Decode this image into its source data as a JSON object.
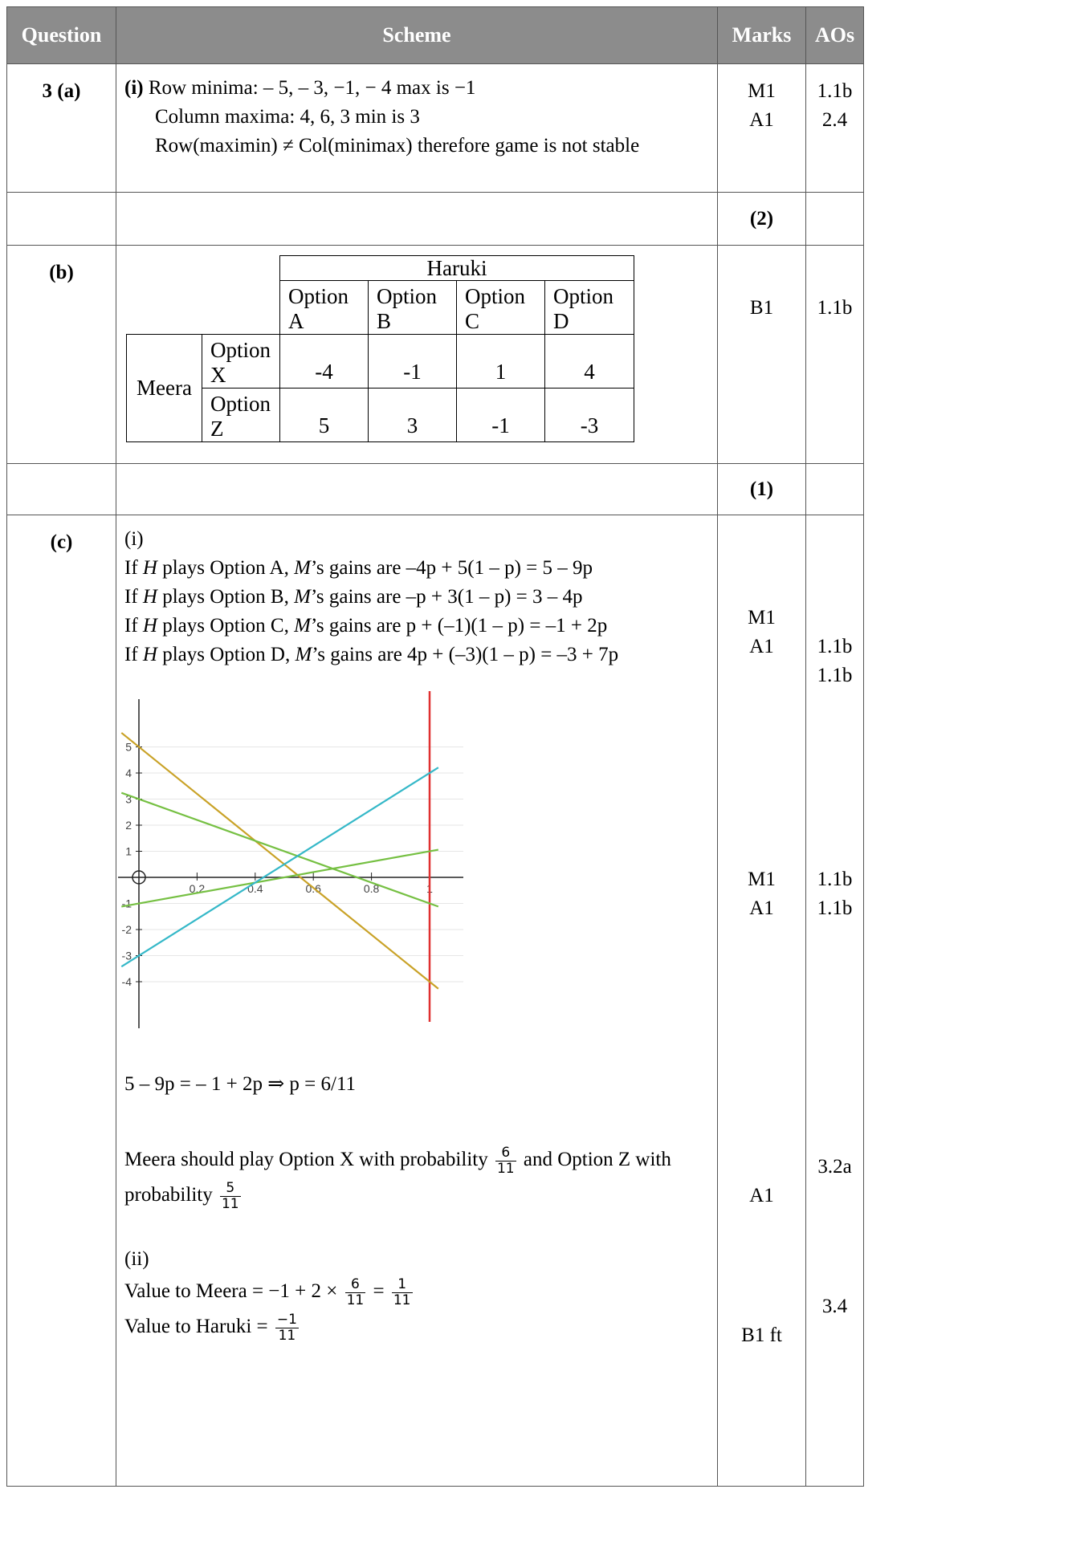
{
  "headers": {
    "question": "Question",
    "scheme": "Scheme",
    "marks": "Marks",
    "aos": "AOs"
  },
  "a": {
    "label": "3 (a)",
    "part_i": "(i)",
    "line1": "Row minima: – 5, – 3, −1, − 4 max is −1",
    "line2": "Column maxima: 4, 6, 3 min is 3",
    "line3": "Row(maximin) ≠ Col(minimax) therefore game is not stable",
    "marks": [
      "M1",
      "A1"
    ],
    "aos": [
      "1.1b",
      "2.4"
    ],
    "subtotal": "(2)"
  },
  "b": {
    "label": "(b)",
    "table": {
      "col_player": "Haruki",
      "row_player": "Meera",
      "col_options": [
        [
          "Option",
          "A"
        ],
        [
          "Option",
          "B"
        ],
        [
          "Option",
          "C"
        ],
        [
          "Option",
          "D"
        ]
      ],
      "rows": [
        {
          "option": [
            "Option",
            "X"
          ],
          "values": [
            "-4",
            "-1",
            "1",
            "4"
          ]
        },
        {
          "option": [
            "Option",
            "Z"
          ],
          "values": [
            "5",
            "3",
            "-1",
            "-3"
          ]
        }
      ]
    },
    "marks": [
      "B1"
    ],
    "aos": [
      "1.1b"
    ],
    "subtotal": "(1)"
  },
  "c": {
    "label": "(c)",
    "part_i": "(i)",
    "gains": [
      {
        "pre": "If ",
        "h": "H",
        "mid": " plays Option A, ",
        "m": "M",
        "post": "’s gains are –4p + 5(1 – p) = 5 – 9p"
      },
      {
        "pre": "If ",
        "h": "H",
        "mid": " plays Option B, ",
        "m": "M",
        "post": "’s gains are –p + 3(1 – p) = 3 – 4p"
      },
      {
        "pre": "If ",
        "h": "H",
        "mid": " plays Option C, ",
        "m": "M",
        "post": "’s gains are p + (–1)(1 – p) = –1 + 2p"
      },
      {
        "pre": "If ",
        "h": "H",
        "mid": " plays Option D, ",
        "m": "M",
        "post": "’s gains are 4p + (–3)(1 – p) = –3 + 7p"
      }
    ],
    "equation": "5 – 9p = – 1 + 2p ⇒ p = 6/11",
    "meera_text_1": "Meera should play Option X with probability",
    "meera_frac_1": {
      "n": "6",
      "d": "11"
    },
    "meera_text_2": "and Option Z with",
    "meera_text_3": "probability",
    "meera_frac_2": {
      "n": "5",
      "d": "11"
    },
    "part_ii": "(ii)",
    "value_meera_pre": "Value to Meera = −1 + 2 ×",
    "value_meera_frac": {
      "n": "6",
      "d": "11"
    },
    "value_meera_eq": "=",
    "value_meera_res": {
      "n": "1",
      "d": "11"
    },
    "value_haruki_pre": "Value to Haruki =",
    "value_haruki_frac": {
      "n": "−1",
      "d": "11"
    },
    "marks": [
      "M1",
      "A1",
      "M1",
      "A1",
      "A1",
      "B1 ft"
    ],
    "aos": [
      "1.1b",
      "1.1b",
      "1.1b",
      "1.1b",
      "3.2a",
      "3.4"
    ]
  },
  "chart_data": {
    "type": "line",
    "xlim": [
      0,
      1
    ],
    "ylim": [
      -4.5,
      5.5
    ],
    "x_ticks": [
      "0.2",
      "0.4",
      "0.6",
      "0.8",
      "1"
    ],
    "y_ticks": [
      "5",
      "4",
      "3",
      "2",
      "1",
      "-1",
      "-2",
      "-3",
      "-4"
    ],
    "grid": "horizontal",
    "series": [
      {
        "color": "#c9a227",
        "x": [
          0,
          1
        ],
        "y": [
          5,
          -4
        ]
      },
      {
        "color": "#76c043",
        "x": [
          0,
          1
        ],
        "y": [
          3,
          -1
        ]
      },
      {
        "color": "#76c043",
        "x": [
          0,
          1
        ],
        "y": [
          -1,
          1
        ]
      },
      {
        "color": "#35b8c8",
        "x": [
          0,
          1
        ],
        "y": [
          -3,
          4
        ]
      }
    ],
    "vertical_line": {
      "x": 1,
      "color": "#e03030"
    }
  }
}
